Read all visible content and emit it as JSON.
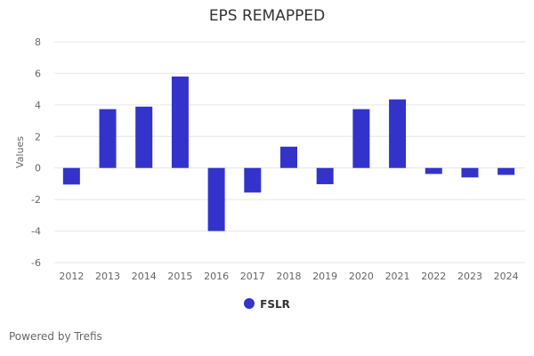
{
  "chart_data": {
    "type": "bar",
    "title": "EPS REMAPPED",
    "xlabel": "",
    "ylabel": "Values",
    "categories": [
      "2012",
      "2013",
      "2014",
      "2015",
      "2016",
      "2017",
      "2018",
      "2019",
      "2020",
      "2021",
      "2022",
      "2023",
      "2024"
    ],
    "series": [
      {
        "name": "FSLR",
        "values": [
          -1.05,
          3.73,
          3.89,
          5.8,
          -4.0,
          -1.56,
          1.35,
          -1.03,
          3.73,
          4.35,
          -0.38,
          -0.6,
          -0.44
        ],
        "color": "#3333cc"
      }
    ],
    "ylim": [
      -6,
      8
    ],
    "yticks": [
      -6,
      -4,
      -2,
      0,
      2,
      4,
      6,
      8
    ],
    "grid": true,
    "legend_position": "bottom"
  },
  "footer": {
    "credit": "Powered by Trefis"
  }
}
